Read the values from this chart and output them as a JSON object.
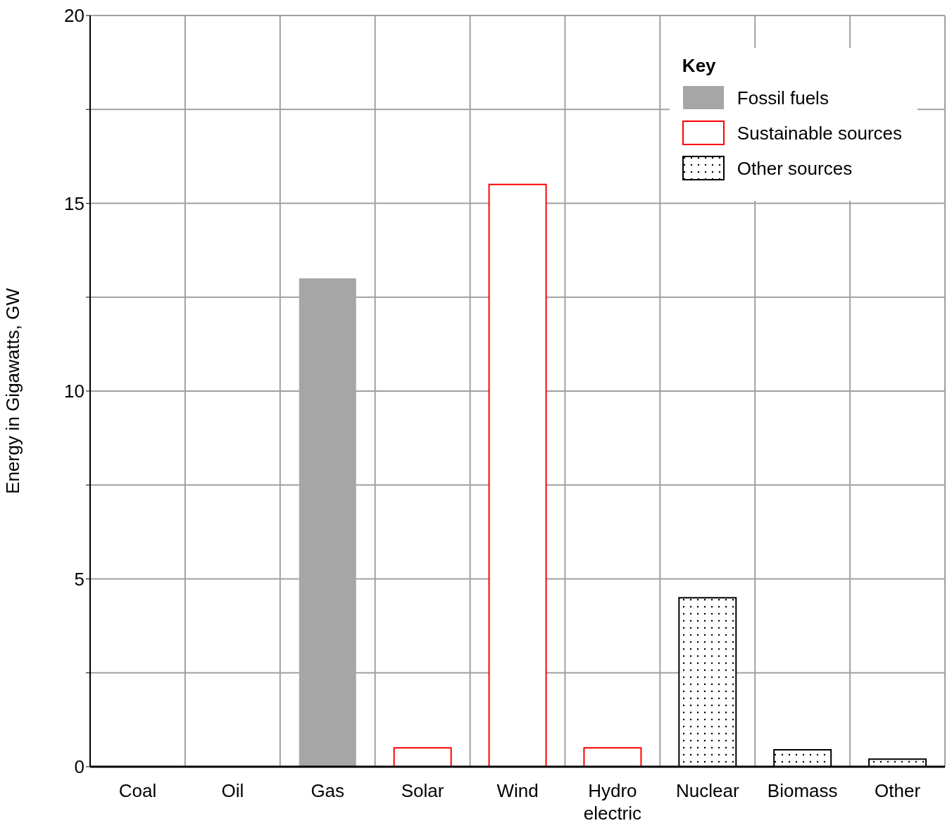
{
  "chart_data": {
    "type": "bar",
    "ylabel": "Energy in Gigawatts, GW",
    "legend_title": "Key",
    "legend": "top right",
    "grid": true,
    "stacked": true,
    "categories": [
      "Coal",
      "Oil",
      "Gas",
      "Solar",
      "Wind",
      "Hydro electric",
      "Nuclear",
      "Biomass",
      "Other"
    ],
    "ylim": [
      0,
      20
    ],
    "yticks": [
      0,
      {
        "value": 2.5,
        "label": null
      },
      5,
      {
        "value": 7.5,
        "label": null
      },
      10,
      {
        "value": 12.5,
        "label": null
      },
      15,
      {
        "value": 17.5,
        "label": null
      },
      20
    ],
    "series": [
      {
        "name": "Fossil fuels",
        "color": "#a6a6a6",
        "values": [
          0,
          0,
          13,
          null,
          null,
          null,
          null,
          null,
          null
        ]
      },
      {
        "name": "Sustainable sources",
        "color": "#ff0000",
        "values": [
          null,
          null,
          null,
          0.5,
          15.5,
          0.5,
          null,
          null,
          null
        ]
      },
      {
        "name": "Other sources",
        "color": "#000000",
        "values": [
          null,
          null,
          null,
          null,
          null,
          null,
          4.5,
          0.45,
          0.2
        ]
      }
    ]
  }
}
